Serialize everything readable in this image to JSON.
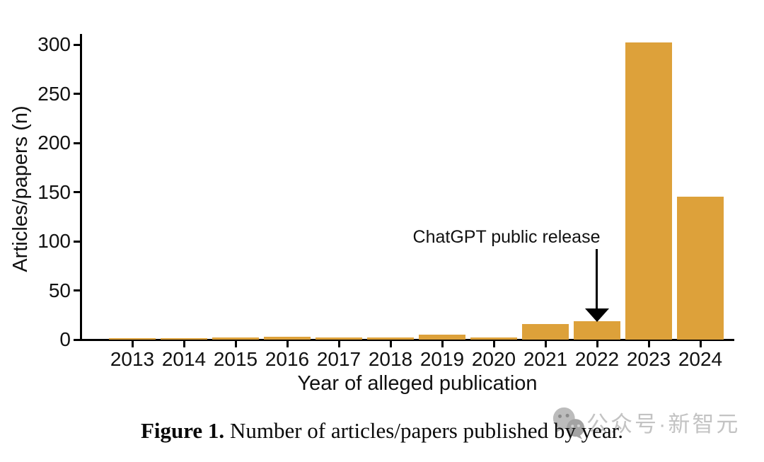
{
  "chart_data": {
    "type": "bar",
    "title": "",
    "xlabel": "Year of alleged publication",
    "ylabel": "Articles/papers (n)",
    "categories": [
      "2013",
      "2014",
      "2015",
      "2016",
      "2017",
      "2018",
      "2019",
      "2020",
      "2021",
      "2022",
      "2023",
      "2024"
    ],
    "values": [
      1,
      1,
      2,
      3,
      2,
      2,
      5,
      2,
      16,
      19,
      302,
      145
    ],
    "ylim": [
      0,
      310
    ],
    "yticks": [
      0,
      50,
      100,
      150,
      200,
      250,
      300
    ],
    "grid": false,
    "legend": "none",
    "bar_color": "#DDA13A",
    "axis_color": "#000000",
    "annotation": {
      "text": "ChatGPT public release",
      "target_category": "2022"
    }
  },
  "caption": {
    "label": "Figure 1.",
    "text": "Number of articles/papers published by year."
  },
  "watermark": {
    "icon": "wechat-logo-icon",
    "text": "公众号·新智元",
    "color": "#bdbdbd"
  }
}
